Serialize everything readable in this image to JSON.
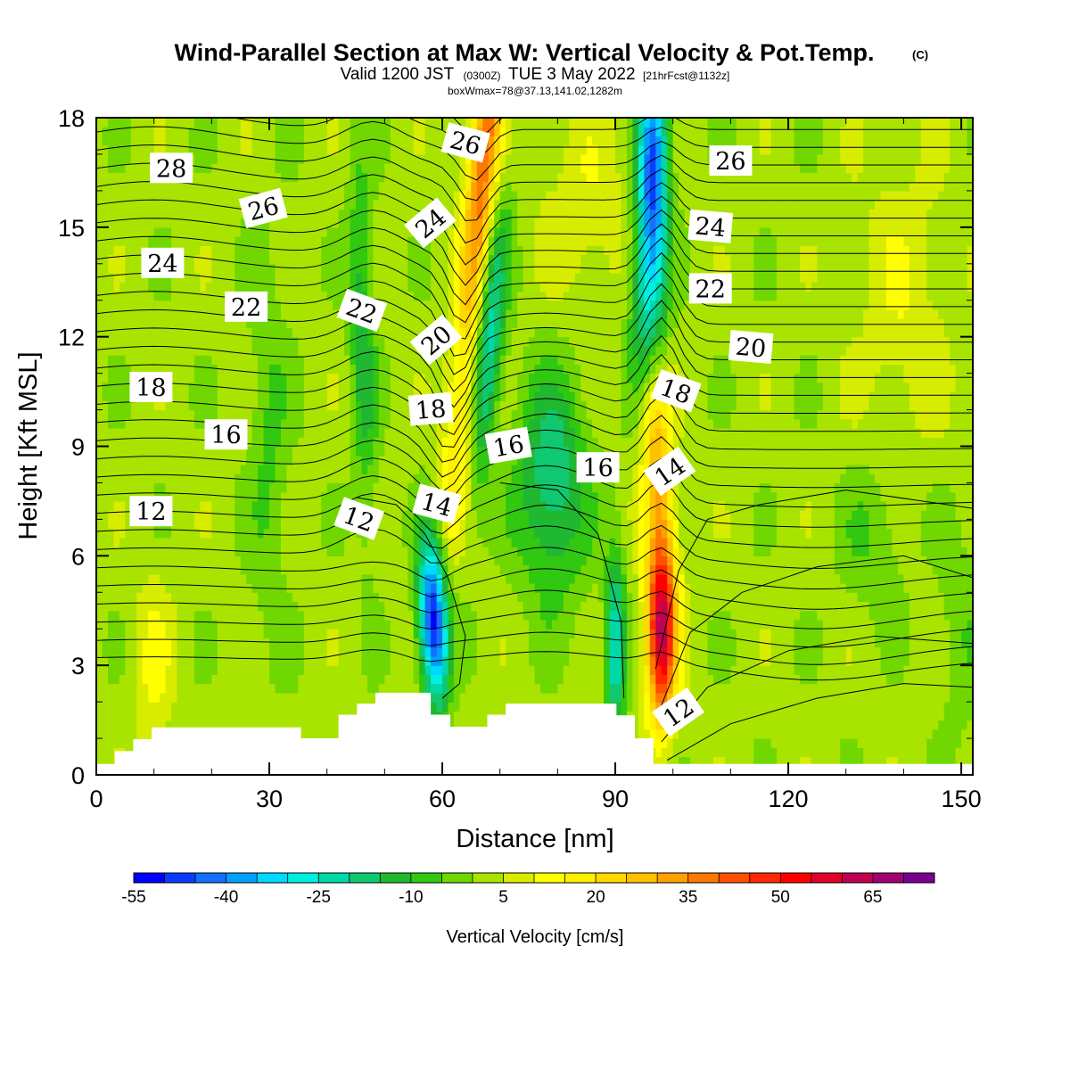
{
  "title": {
    "main": "Wind-Parallel Section at Max W: Vertical Velocity & Pot.Temp.",
    "copyright": "(C)",
    "valid_prefix": "Valid 1200 JST",
    "valid_utc": "(0300Z)",
    "valid_date": "TUE 3 May 2022",
    "forecast": "[21hrFcst@1132z]",
    "box": "boxWmax=78@37.13,141.02,1282m"
  },
  "chart_data": {
    "type": "heatmap",
    "xlabel": "Distance [nm]",
    "ylabel": "Height [Kft MSL]",
    "xlim": [
      0,
      152
    ],
    "ylim": [
      0,
      18
    ],
    "x_ticks": [
      "0",
      "30",
      "60",
      "90",
      "120",
      "150"
    ],
    "y_ticks": [
      "0",
      "3",
      "6",
      "9",
      "12",
      "15",
      "18"
    ],
    "x_tick_values": [
      0,
      30,
      60,
      90,
      120,
      150
    ],
    "y_tick_values": [
      0,
      3,
      6,
      9,
      12,
      15,
      18
    ],
    "colorbar": {
      "title": "Vertical Velocity [cm/s]",
      "tick_labels": [
        "-55",
        "-40",
        "-25",
        "-10",
        "5",
        "20",
        "35",
        "50",
        "65"
      ],
      "levels": [
        -55,
        -50,
        -45,
        -40,
        -35,
        -30,
        -25,
        -20,
        -15,
        -10,
        -5,
        0,
        5,
        10,
        15,
        20,
        25,
        30,
        35,
        40,
        45,
        50,
        55,
        60,
        65,
        70
      ],
      "colors": [
        "#0000ff",
        "#0a3cff",
        "#1470ff",
        "#00a0ff",
        "#00d8ff",
        "#00f0e0",
        "#00d8a8",
        "#10c870",
        "#20b830",
        "#30c810",
        "#70d800",
        "#a8e400",
        "#d8ec00",
        "#ffff00",
        "#fff000",
        "#ffd800",
        "#ffc000",
        "#ffa000",
        "#ff7800",
        "#ff5000",
        "#ff2800",
        "#ff0000",
        "#e0002a",
        "#c00050",
        "#a00070",
        "#7a0090"
      ]
    },
    "contour_labels": [
      {
        "text": "28",
        "x": 13,
        "y": 16.6,
        "angle": 0
      },
      {
        "text": "26",
        "x": 29,
        "y": 15.5,
        "angle": -15
      },
      {
        "text": "24",
        "x": 11.5,
        "y": 14.0,
        "angle": 0
      },
      {
        "text": "22",
        "x": 26,
        "y": 12.8,
        "angle": 0
      },
      {
        "text": "18",
        "x": 9.5,
        "y": 10.6,
        "angle": 0
      },
      {
        "text": "16",
        "x": 22.5,
        "y": 9.3,
        "angle": 0
      },
      {
        "text": "12",
        "x": 9.5,
        "y": 7.2,
        "angle": 0
      },
      {
        "text": "22",
        "x": 46,
        "y": 12.7,
        "angle": 20
      },
      {
        "text": "12",
        "x": 45.5,
        "y": 7.0,
        "angle": 20
      },
      {
        "text": "26",
        "x": 64,
        "y": 17.3,
        "angle": 15
      },
      {
        "text": "24",
        "x": 58,
        "y": 15.1,
        "angle": -40
      },
      {
        "text": "20",
        "x": 59,
        "y": 11.9,
        "angle": -40
      },
      {
        "text": "18",
        "x": 58,
        "y": 10.0,
        "angle": -5
      },
      {
        "text": "14",
        "x": 59,
        "y": 7.4,
        "angle": 15
      },
      {
        "text": "16",
        "x": 71.5,
        "y": 9.0,
        "angle": -10
      },
      {
        "text": "16",
        "x": 87,
        "y": 8.4,
        "angle": 0
      },
      {
        "text": "26",
        "x": 110,
        "y": 16.8,
        "angle": 0
      },
      {
        "text": "24",
        "x": 106.5,
        "y": 15.0,
        "angle": 5
      },
      {
        "text": "22",
        "x": 106.5,
        "y": 13.3,
        "angle": 0
      },
      {
        "text": "20",
        "x": 113.5,
        "y": 11.7,
        "angle": 5
      },
      {
        "text": "18",
        "x": 100.5,
        "y": 10.5,
        "angle": 20
      },
      {
        "text": "14",
        "x": 99.5,
        "y": 8.3,
        "angle": -35
      },
      {
        "text": "12",
        "x": 101,
        "y": 1.7,
        "angle": -35
      }
    ]
  },
  "colors": {
    "background": "#ffffff",
    "terrain": "#ffffff",
    "contour": "#000000"
  }
}
